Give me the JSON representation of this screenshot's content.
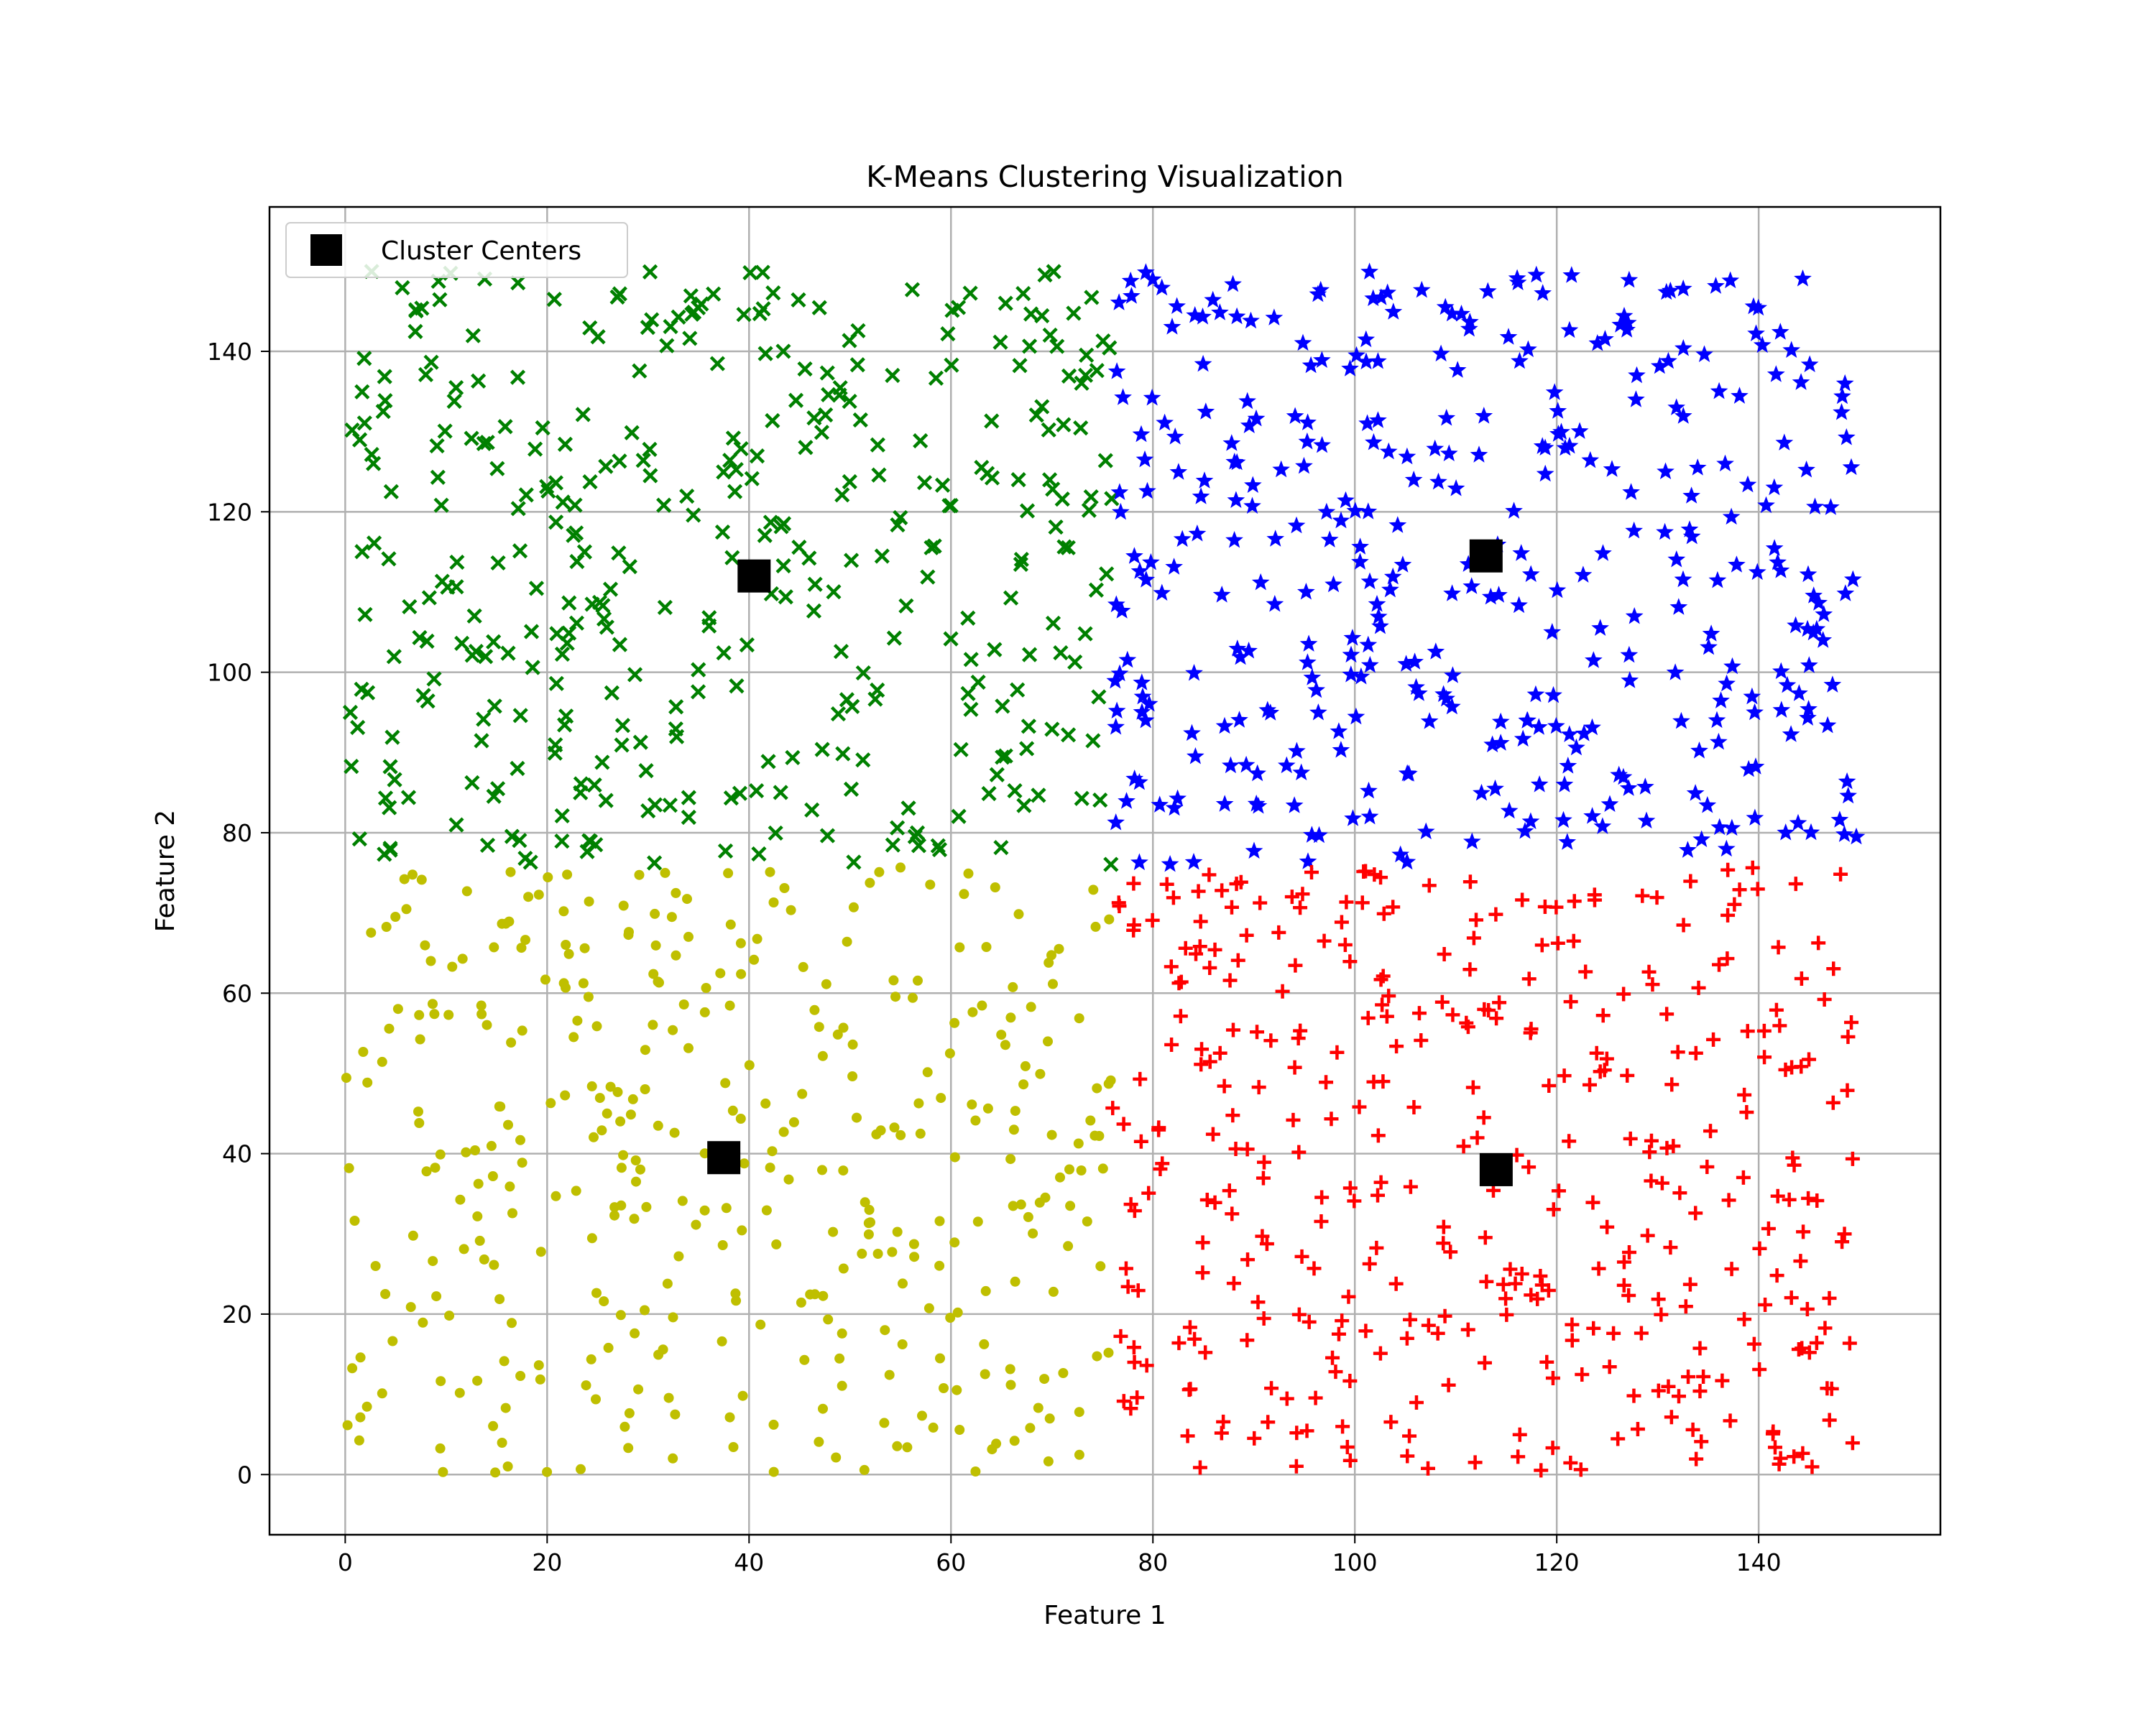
{
  "chart_data": {
    "type": "scatter",
    "title": "K-Means Clustering Visualization",
    "xlabel": "Feature 1",
    "ylabel": "Feature 2",
    "xlim": [
      -7.5,
      158
    ],
    "ylim": [
      -7.5,
      158
    ],
    "x_ticks": [
      0,
      20,
      40,
      60,
      80,
      100,
      120,
      140
    ],
    "y_ticks": [
      0,
      20,
      40,
      60,
      80,
      100,
      120,
      140
    ],
    "grid": true,
    "legend": {
      "position": "top-left",
      "entries": [
        "Cluster Centers"
      ]
    },
    "clusters": [
      {
        "marker": "circle",
        "color": "#bfbf00",
        "x_range": [
          0,
          76
        ],
        "y_range": [
          0,
          76
        ],
        "count": 380
      },
      {
        "marker": "x",
        "color": "#008000",
        "x_range": [
          0,
          76
        ],
        "y_range": [
          76,
          150
        ],
        "count": 380
      },
      {
        "marker": "star",
        "color": "#0000ff",
        "x_range": [
          76,
          150
        ],
        "y_range": [
          76,
          150
        ],
        "count": 380
      },
      {
        "marker": "plus",
        "color": "#ff0000",
        "x_range": [
          76,
          150
        ],
        "y_range": [
          0,
          76
        ],
        "count": 380
      }
    ],
    "centers": {
      "name": "Cluster Centers",
      "marker": "square",
      "color": "#000000",
      "points": [
        {
          "x": 40.5,
          "y": 112
        },
        {
          "x": 113,
          "y": 114.5
        },
        {
          "x": 37.5,
          "y": 39.5
        },
        {
          "x": 114,
          "y": 38
        }
      ]
    }
  }
}
